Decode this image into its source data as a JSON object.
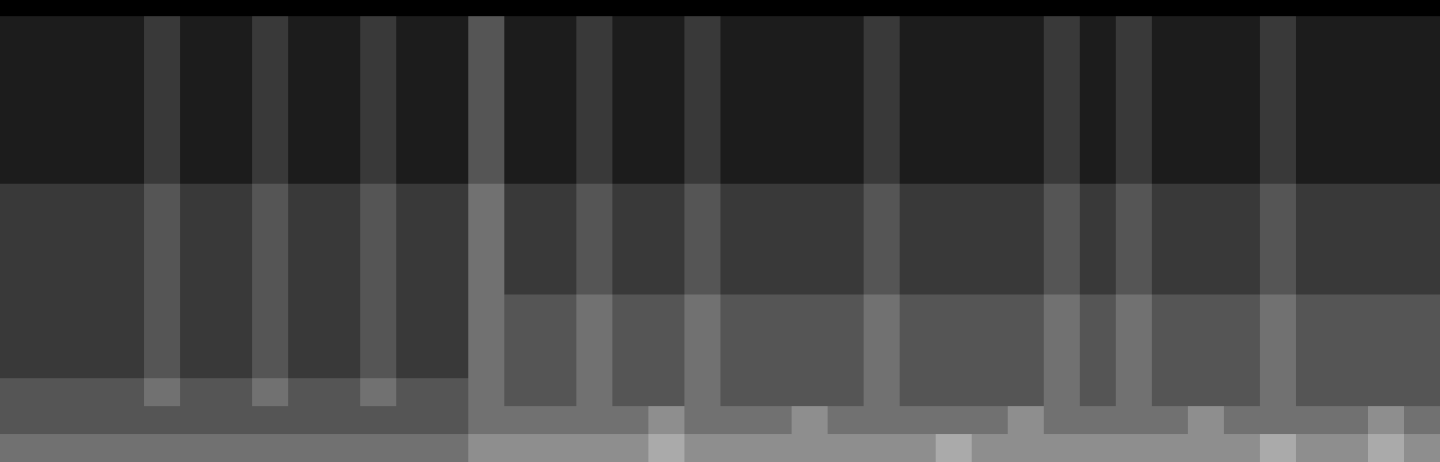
{
  "chart_data": {
    "type": "heatmap",
    "tick_labels": false,
    "clim": [
      0,
      9
    ],
    "color": "#ffffff",
    "cells": [
      [
        1,
        1,
        1,
        1,
        2,
        1,
        1,
        2,
        1,
        1,
        2,
        1,
        1,
        3,
        1,
        1,
        2,
        1,
        1,
        2,
        1,
        1,
        1,
        1,
        2,
        1,
        1,
        1,
        1,
        2,
        1,
        2,
        1,
        1,
        1,
        2,
        1,
        1,
        1,
        1
      ],
      [
        1,
        1,
        1,
        1,
        2,
        1,
        1,
        2,
        1,
        1,
        2,
        1,
        1,
        3,
        1,
        1,
        2,
        1,
        1,
        2,
        1,
        1,
        1,
        1,
        2,
        1,
        1,
        1,
        1,
        2,
        1,
        2,
        1,
        1,
        1,
        2,
        1,
        1,
        1,
        1
      ],
      [
        1,
        1,
        1,
        1,
        2,
        1,
        1,
        2,
        1,
        1,
        2,
        1,
        1,
        3,
        1,
        1,
        2,
        1,
        1,
        2,
        1,
        1,
        1,
        1,
        2,
        1,
        1,
        1,
        1,
        2,
        1,
        2,
        1,
        1,
        1,
        2,
        1,
        1,
        1,
        1
      ],
      [
        1,
        1,
        1,
        1,
        2,
        1,
        1,
        2,
        1,
        1,
        2,
        1,
        1,
        3,
        1,
        1,
        2,
        1,
        1,
        2,
        1,
        1,
        1,
        1,
        2,
        1,
        1,
        1,
        1,
        2,
        1,
        2,
        1,
        1,
        1,
        2,
        1,
        1,
        1,
        1
      ],
      [
        1,
        1,
        1,
        1,
        2,
        1,
        1,
        2,
        1,
        1,
        2,
        1,
        1,
        3,
        1,
        1,
        2,
        1,
        1,
        2,
        1,
        1,
        1,
        1,
        2,
        1,
        1,
        1,
        1,
        2,
        1,
        2,
        1,
        1,
        1,
        2,
        1,
        1,
        1,
        1
      ],
      [
        1,
        1,
        1,
        1,
        2,
        1,
        1,
        2,
        1,
        1,
        2,
        1,
        1,
        3,
        1,
        1,
        2,
        1,
        1,
        2,
        1,
        1,
        1,
        1,
        2,
        1,
        1,
        1,
        1,
        2,
        1,
        2,
        1,
        1,
        1,
        2,
        1,
        1,
        1,
        1
      ],
      [
        2,
        2,
        2,
        2,
        3,
        2,
        2,
        3,
        2,
        2,
        3,
        2,
        2,
        4,
        2,
        2,
        3,
        2,
        2,
        3,
        2,
        2,
        2,
        2,
        3,
        2,
        2,
        2,
        2,
        3,
        2,
        3,
        2,
        2,
        2,
        3,
        2,
        2,
        2,
        2
      ],
      [
        2,
        2,
        2,
        2,
        3,
        2,
        2,
        3,
        2,
        2,
        3,
        2,
        2,
        4,
        2,
        2,
        3,
        2,
        2,
        3,
        2,
        2,
        2,
        2,
        3,
        2,
        2,
        2,
        2,
        3,
        2,
        3,
        2,
        2,
        2,
        3,
        2,
        2,
        2,
        2
      ],
      [
        2,
        2,
        2,
        2,
        3,
        2,
        2,
        3,
        2,
        2,
        3,
        2,
        2,
        4,
        2,
        2,
        3,
        2,
        2,
        3,
        2,
        2,
        2,
        2,
        3,
        2,
        2,
        2,
        2,
        3,
        2,
        3,
        2,
        2,
        2,
        3,
        2,
        2,
        2,
        2
      ],
      [
        2,
        2,
        2,
        2,
        3,
        2,
        2,
        3,
        2,
        2,
        3,
        2,
        2,
        4,
        2,
        2,
        3,
        2,
        2,
        3,
        2,
        2,
        2,
        2,
        3,
        2,
        2,
        2,
        2,
        3,
        2,
        3,
        2,
        2,
        2,
        3,
        2,
        2,
        2,
        2
      ],
      [
        2,
        2,
        2,
        2,
        3,
        2,
        2,
        3,
        2,
        2,
        3,
        2,
        2,
        4,
        3,
        3,
        4,
        3,
        3,
        4,
        3,
        3,
        3,
        3,
        4,
        3,
        3,
        3,
        3,
        4,
        3,
        4,
        3,
        3,
        3,
        4,
        3,
        3,
        3,
        3
      ],
      [
        2,
        2,
        2,
        2,
        3,
        2,
        2,
        3,
        2,
        2,
        3,
        2,
        2,
        4,
        3,
        3,
        4,
        3,
        3,
        4,
        3,
        3,
        3,
        3,
        4,
        3,
        3,
        3,
        3,
        4,
        3,
        4,
        3,
        3,
        3,
        4,
        3,
        3,
        3,
        3
      ],
      [
        2,
        2,
        2,
        2,
        3,
        2,
        2,
        3,
        2,
        2,
        3,
        2,
        2,
        4,
        3,
        3,
        4,
        3,
        3,
        4,
        3,
        3,
        3,
        3,
        4,
        3,
        3,
        3,
        3,
        4,
        3,
        4,
        3,
        3,
        3,
        4,
        3,
        3,
        3,
        3
      ],
      [
        3,
        3,
        3,
        3,
        4,
        3,
        3,
        4,
        3,
        3,
        4,
        3,
        3,
        4,
        3,
        3,
        4,
        3,
        3,
        4,
        3,
        3,
        3,
        3,
        4,
        3,
        3,
        3,
        3,
        4,
        3,
        4,
        3,
        3,
        3,
        4,
        3,
        3,
        3,
        3
      ],
      [
        3,
        3,
        3,
        3,
        3,
        3,
        3,
        3,
        3,
        3,
        3,
        3,
        3,
        4,
        4,
        4,
        4,
        4,
        5,
        4,
        4,
        4,
        5,
        4,
        4,
        4,
        4,
        4,
        5,
        4,
        4,
        4,
        4,
        5,
        4,
        4,
        4,
        4,
        5,
        4
      ],
      [
        4,
        4,
        4,
        4,
        4,
        4,
        4,
        4,
        4,
        4,
        4,
        4,
        4,
        5,
        5,
        5,
        5,
        5,
        6,
        5,
        5,
        5,
        5,
        5,
        5,
        5,
        6,
        5,
        5,
        5,
        5,
        5,
        5,
        5,
        5,
        6,
        5,
        5,
        6,
        5
      ]
    ]
  }
}
